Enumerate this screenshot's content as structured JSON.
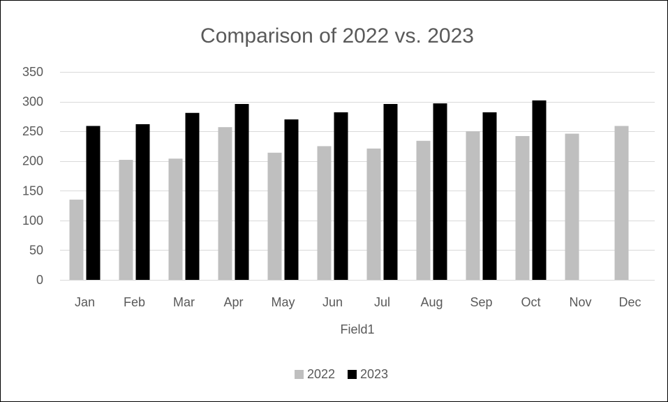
{
  "chart_data": {
    "type": "bar",
    "title": "Comparison of 2022 vs. 2023",
    "xlabel": "Field1",
    "ylabel": "",
    "categories": [
      "Jan",
      "Feb",
      "Mar",
      "Apr",
      "May",
      "Jun",
      "Jul",
      "Aug",
      "Sep",
      "Oct",
      "Nov",
      "Dec"
    ],
    "series": [
      {
        "name": "2022",
        "color": "#bfbfbf",
        "values": [
          135,
          202,
          204,
          257,
          214,
          225,
          221,
          234,
          250,
          242,
          246,
          259
        ]
      },
      {
        "name": "2023",
        "color": "#000000",
        "values": [
          259,
          262,
          281,
          296,
          270,
          282,
          296,
          297,
          282,
          302,
          null,
          null
        ]
      }
    ],
    "ylim": [
      0,
      350
    ],
    "yticks": [
      0,
      50,
      100,
      150,
      200,
      250,
      300,
      350
    ],
    "grid": true,
    "legend_position": "bottom"
  }
}
